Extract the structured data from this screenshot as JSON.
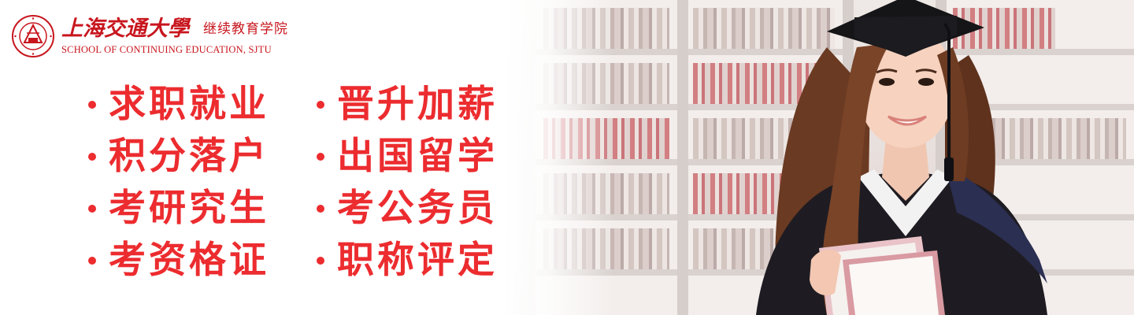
{
  "logo": {
    "university_name": "上海交通大學",
    "school_name_cn": "继续教育学院",
    "school_name_en": "SCHOOL OF CONTINUING EDUCATION, SJTU",
    "seal_icon": "university-seal-icon",
    "seal_text": "SHANGHAI JIAO TONG UNIVERSITY"
  },
  "benefits": [
    {
      "label": "求职就业"
    },
    {
      "label": "晋升加薪"
    },
    {
      "label": "积分落户"
    },
    {
      "label": "出国留学"
    },
    {
      "label": "考研究生"
    },
    {
      "label": "考公务员"
    },
    {
      "label": "考资格证"
    },
    {
      "label": "职称评定"
    }
  ],
  "colors": {
    "brand_red": "#c8161e",
    "benefit_red": "#ec2c2f",
    "background": "#ffffff"
  }
}
